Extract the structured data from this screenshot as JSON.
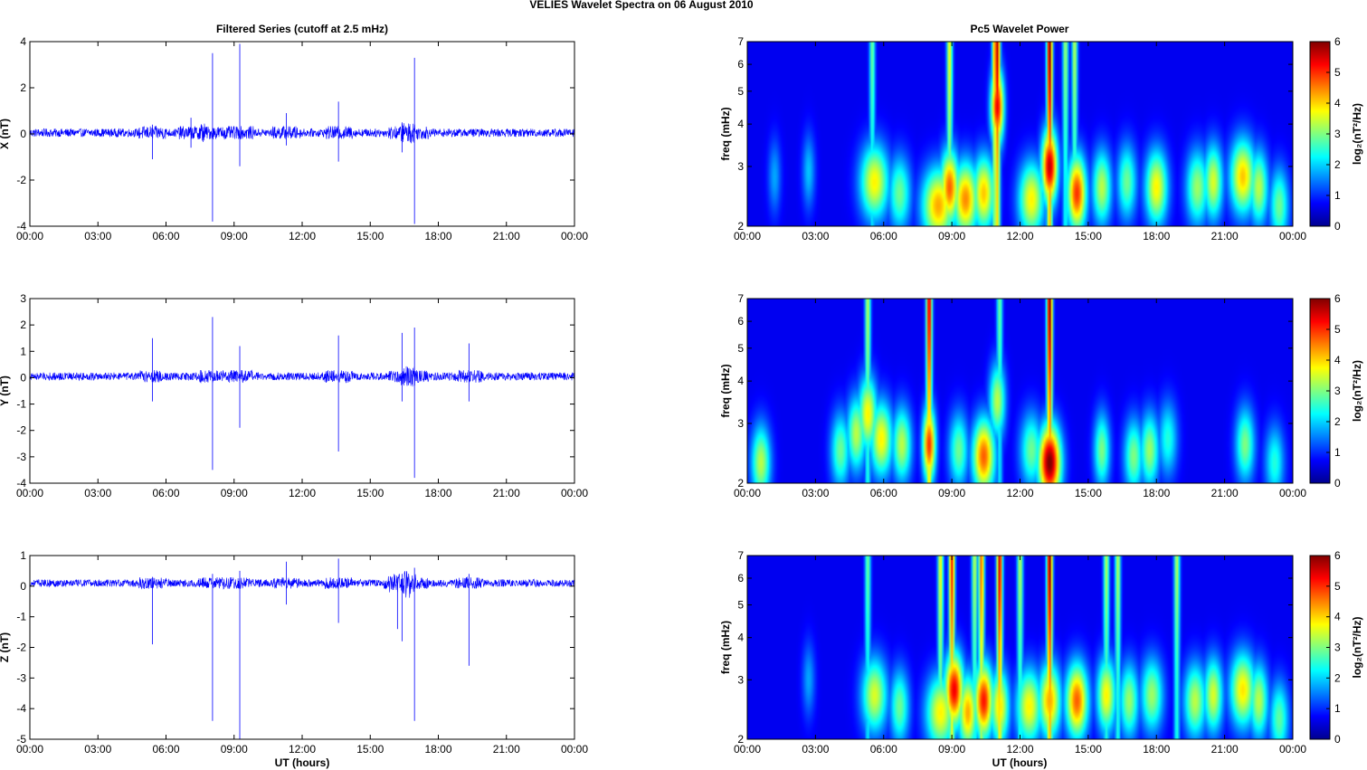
{
  "figure": {
    "suptitle": "VELIES Wavelet Spectra on 06 August    2010",
    "left_title": "Filtered Series (cutoff at 2.5 mHz)",
    "right_title": "Pc5 Wavelet Power",
    "xlabel": "UT (hours)",
    "freq_label": "freq (mHz)",
    "colorbar_label": "log₂(nT²/Hz)",
    "colorbar_ticks": [
      "0",
      "1",
      "2",
      "3",
      "4",
      "5",
      "6"
    ],
    "colormap": [
      "#00008f",
      "#0000ff",
      "#0080ff",
      "#00ffff",
      "#80ff80",
      "#ffff00",
      "#ff8000",
      "#ff0000",
      "#800000"
    ],
    "line_color": "#0000ff"
  },
  "chart_data": [
    {
      "type": "line",
      "component": "X",
      "ylabel": "X (nT)",
      "xlim": [
        0,
        24
      ],
      "ylim": [
        -4,
        4
      ],
      "x_ticks": [
        "00:00",
        "03:00",
        "06:00",
        "09:00",
        "12:00",
        "15:00",
        "18:00",
        "21:00",
        "00:00"
      ],
      "y_ticks": [
        "-4",
        "-2",
        "0",
        "2",
        "4"
      ],
      "baseline": 0.05,
      "noise_amplitude": 0.18,
      "spikes": [
        {
          "t": 5.4,
          "up": 0.4,
          "down": -1.1
        },
        {
          "t": 7.1,
          "up": 0.7,
          "down": -0.6
        },
        {
          "t": 8.05,
          "up": 3.5,
          "down": -3.8
        },
        {
          "t": 9.25,
          "up": 3.9,
          "down": -1.4
        },
        {
          "t": 11.3,
          "up": 0.9,
          "down": -0.5
        },
        {
          "t": 13.6,
          "up": 1.4,
          "down": -1.2
        },
        {
          "t": 16.4,
          "up": 0.5,
          "down": -0.8
        },
        {
          "t": 16.95,
          "up": 3.3,
          "down": -3.9
        }
      ]
    },
    {
      "type": "line",
      "component": "Y",
      "ylabel": "Y (nT)",
      "xlim": [
        0,
        24
      ],
      "ylim": [
        -4,
        3
      ],
      "x_ticks": [
        "00:00",
        "03:00",
        "06:00",
        "09:00",
        "12:00",
        "15:00",
        "18:00",
        "21:00",
        "00:00"
      ],
      "y_ticks": [
        "-4",
        "-3",
        "-2",
        "-1",
        "0",
        "1",
        "2",
        "3"
      ],
      "baseline": 0.05,
      "noise_amplitude": 0.15,
      "spikes": [
        {
          "t": 5.4,
          "up": 1.5,
          "down": -0.9
        },
        {
          "t": 8.05,
          "up": 2.3,
          "down": -3.5
        },
        {
          "t": 9.25,
          "up": 1.2,
          "down": -1.9
        },
        {
          "t": 13.6,
          "up": 1.6,
          "down": -2.8
        },
        {
          "t": 16.4,
          "up": 1.7,
          "down": -0.9
        },
        {
          "t": 16.95,
          "up": 1.9,
          "down": -3.8
        },
        {
          "t": 19.35,
          "up": 1.3,
          "down": -0.9
        }
      ]
    },
    {
      "type": "line",
      "component": "Z",
      "ylabel": "Z (nT)",
      "xlim": [
        0,
        24
      ],
      "ylim": [
        -5,
        1
      ],
      "x_ticks": [
        "00:00",
        "03:00",
        "06:00",
        "09:00",
        "12:00",
        "15:00",
        "18:00",
        "21:00",
        "00:00"
      ],
      "y_ticks": [
        "-5",
        "-4",
        "-3",
        "-2",
        "-1",
        "0",
        "1"
      ],
      "baseline": 0.1,
      "noise_amplitude": 0.12,
      "spikes": [
        {
          "t": 5.4,
          "up": 0.3,
          "down": -1.9
        },
        {
          "t": 8.05,
          "up": 0.4,
          "down": -4.4
        },
        {
          "t": 9.25,
          "up": 0.5,
          "down": -5.0
        },
        {
          "t": 11.3,
          "up": 0.8,
          "down": -0.6
        },
        {
          "t": 13.6,
          "up": 0.9,
          "down": -1.2
        },
        {
          "t": 16.2,
          "up": 0.3,
          "down": -1.4
        },
        {
          "t": 16.4,
          "up": 0.4,
          "down": -1.8
        },
        {
          "t": 16.95,
          "up": 0.6,
          "down": -4.4
        },
        {
          "t": 19.35,
          "up": 0.4,
          "down": -2.6
        }
      ]
    },
    {
      "type": "heatmap",
      "component": "X",
      "ylabel": "freq (mHz)",
      "xlim": [
        0,
        24
      ],
      "ylim": [
        2,
        7
      ],
      "yscale": "log",
      "clim": [
        0,
        6
      ],
      "x_ticks": [
        "00:00",
        "03:00",
        "06:00",
        "09:00",
        "12:00",
        "15:00",
        "18:00",
        "21:00",
        "00:00"
      ],
      "y_ticks": [
        "2",
        "3",
        "4",
        "5",
        "6",
        "7"
      ],
      "blobs": [
        {
          "t": 1.2,
          "f": 2.8,
          "p": 1.2,
          "w": 0.2
        },
        {
          "t": 2.7,
          "f": 2.9,
          "p": 1.4,
          "w": 0.2
        },
        {
          "t": 5.6,
          "f": 2.7,
          "p": 3.5,
          "w": 0.45
        },
        {
          "t": 6.7,
          "f": 2.5,
          "p": 2.5,
          "w": 0.35
        },
        {
          "t": 8.4,
          "f": 2.3,
          "p": 4.0,
          "w": 0.5
        },
        {
          "t": 8.9,
          "f": 2.6,
          "p": 4.5,
          "w": 0.3
        },
        {
          "t": 9.6,
          "f": 2.4,
          "p": 4.2,
          "w": 0.4
        },
        {
          "t": 10.4,
          "f": 2.5,
          "p": 3.8,
          "w": 0.35
        },
        {
          "t": 11.0,
          "f": 4.5,
          "p": 5.2,
          "w": 0.2
        },
        {
          "t": 12.5,
          "f": 2.4,
          "p": 3.5,
          "w": 0.4
        },
        {
          "t": 13.3,
          "f": 3.0,
          "p": 5.5,
          "w": 0.25
        },
        {
          "t": 14.5,
          "f": 2.5,
          "p": 4.8,
          "w": 0.3
        },
        {
          "t": 15.6,
          "f": 2.6,
          "p": 3.0,
          "w": 0.3
        },
        {
          "t": 16.7,
          "f": 2.7,
          "p": 2.5,
          "w": 0.3
        },
        {
          "t": 18.0,
          "f": 2.6,
          "p": 3.5,
          "w": 0.35
        },
        {
          "t": 19.8,
          "f": 2.6,
          "p": 2.8,
          "w": 0.35
        },
        {
          "t": 20.5,
          "f": 2.7,
          "p": 3.2,
          "w": 0.3
        },
        {
          "t": 21.8,
          "f": 2.8,
          "p": 3.8,
          "w": 0.4
        },
        {
          "t": 22.5,
          "f": 2.6,
          "p": 3.0,
          "w": 0.3
        },
        {
          "t": 23.4,
          "f": 2.3,
          "p": 2.5,
          "w": 0.3
        }
      ],
      "streaks": [
        {
          "t": 5.5,
          "p": 2.5
        },
        {
          "t": 8.9,
          "p": 3.5
        },
        {
          "t": 10.9,
          "p": 4.5
        },
        {
          "t": 11.0,
          "p": 5.5
        },
        {
          "t": 13.3,
          "p": 6.0
        },
        {
          "t": 14.0,
          "p": 2.8
        },
        {
          "t": 14.4,
          "p": 3.0
        }
      ]
    },
    {
      "type": "heatmap",
      "component": "Y",
      "ylabel": "freq (mHz)",
      "xlim": [
        0,
        24
      ],
      "ylim": [
        2,
        7
      ],
      "yscale": "log",
      "clim": [
        0,
        6
      ],
      "x_ticks": [
        "00:00",
        "03:00",
        "06:00",
        "09:00",
        "12:00",
        "15:00",
        "18:00",
        "21:00",
        "00:00"
      ],
      "y_ticks": [
        "2",
        "3",
        "4",
        "5",
        "6",
        "7"
      ],
      "blobs": [
        {
          "t": 0.6,
          "f": 2.3,
          "p": 3.0,
          "w": 0.3
        },
        {
          "t": 4.1,
          "f": 2.5,
          "p": 2.5,
          "w": 0.3
        },
        {
          "t": 4.8,
          "f": 2.8,
          "p": 3.0,
          "w": 0.3
        },
        {
          "t": 5.3,
          "f": 3.2,
          "p": 3.5,
          "w": 0.3
        },
        {
          "t": 5.9,
          "f": 2.7,
          "p": 3.5,
          "w": 0.35
        },
        {
          "t": 6.8,
          "f": 2.6,
          "p": 3.0,
          "w": 0.3
        },
        {
          "t": 8.0,
          "f": 2.6,
          "p": 4.8,
          "w": 0.2
        },
        {
          "t": 9.3,
          "f": 2.5,
          "p": 2.5,
          "w": 0.3
        },
        {
          "t": 10.4,
          "f": 2.4,
          "p": 4.5,
          "w": 0.35
        },
        {
          "t": 11.0,
          "f": 3.5,
          "p": 3.0,
          "w": 0.25
        },
        {
          "t": 12.5,
          "f": 2.5,
          "p": 2.5,
          "w": 0.35
        },
        {
          "t": 13.3,
          "f": 2.3,
          "p": 6.0,
          "w": 0.35
        },
        {
          "t": 15.6,
          "f": 2.5,
          "p": 2.6,
          "w": 0.25
        },
        {
          "t": 17.0,
          "f": 2.4,
          "p": 2.6,
          "w": 0.3
        },
        {
          "t": 17.7,
          "f": 2.5,
          "p": 2.8,
          "w": 0.3
        },
        {
          "t": 18.5,
          "f": 2.7,
          "p": 2.0,
          "w": 0.3
        },
        {
          "t": 21.9,
          "f": 2.6,
          "p": 2.6,
          "w": 0.3
        },
        {
          "t": 23.2,
          "f": 2.3,
          "p": 2.0,
          "w": 0.3
        }
      ],
      "streaks": [
        {
          "t": 5.3,
          "p": 3.0
        },
        {
          "t": 8.0,
          "p": 5.5
        },
        {
          "t": 11.1,
          "p": 2.5
        },
        {
          "t": 13.3,
          "p": 6.0
        }
      ]
    },
    {
      "type": "heatmap",
      "component": "Z",
      "ylabel": "freq (mHz)",
      "xlim": [
        0,
        24
      ],
      "ylim": [
        2,
        7
      ],
      "yscale": "log",
      "clim": [
        0,
        6
      ],
      "x_ticks": [
        "00:00",
        "03:00",
        "06:00",
        "09:00",
        "12:00",
        "15:00",
        "18:00",
        "21:00",
        "00:00"
      ],
      "y_ticks": [
        "2",
        "3",
        "4",
        "5",
        "6",
        "7"
      ],
      "blobs": [
        {
          "t": 2.7,
          "f": 3.0,
          "p": 1.2,
          "w": 0.2
        },
        {
          "t": 5.6,
          "f": 2.7,
          "p": 3.2,
          "w": 0.4
        },
        {
          "t": 6.7,
          "f": 2.5,
          "p": 2.5,
          "w": 0.3
        },
        {
          "t": 8.5,
          "f": 2.4,
          "p": 3.5,
          "w": 0.45
        },
        {
          "t": 9.1,
          "f": 2.8,
          "p": 5.2,
          "w": 0.3
        },
        {
          "t": 9.7,
          "f": 2.4,
          "p": 4.0,
          "w": 0.3
        },
        {
          "t": 10.4,
          "f": 2.6,
          "p": 5.0,
          "w": 0.3
        },
        {
          "t": 11.1,
          "f": 2.5,
          "p": 3.6,
          "w": 0.3
        },
        {
          "t": 12.4,
          "f": 2.5,
          "p": 3.5,
          "w": 0.4
        },
        {
          "t": 13.3,
          "f": 2.6,
          "p": 4.0,
          "w": 0.35
        },
        {
          "t": 14.5,
          "f": 2.6,
          "p": 4.5,
          "w": 0.35
        },
        {
          "t": 15.8,
          "f": 2.7,
          "p": 3.5,
          "w": 0.3
        },
        {
          "t": 16.8,
          "f": 2.6,
          "p": 2.8,
          "w": 0.3
        },
        {
          "t": 17.8,
          "f": 2.7,
          "p": 2.8,
          "w": 0.35
        },
        {
          "t": 19.7,
          "f": 2.6,
          "p": 3.0,
          "w": 0.35
        },
        {
          "t": 20.5,
          "f": 2.7,
          "p": 3.2,
          "w": 0.3
        },
        {
          "t": 21.8,
          "f": 2.8,
          "p": 3.6,
          "w": 0.4
        },
        {
          "t": 22.5,
          "f": 2.6,
          "p": 3.0,
          "w": 0.3
        },
        {
          "t": 23.4,
          "f": 2.3,
          "p": 2.4,
          "w": 0.3
        }
      ],
      "streaks": [
        {
          "t": 5.3,
          "p": 2.5
        },
        {
          "t": 8.5,
          "p": 3.5
        },
        {
          "t": 9.0,
          "p": 5.0
        },
        {
          "t": 10.0,
          "p": 3.0
        },
        {
          "t": 10.3,
          "p": 4.5
        },
        {
          "t": 11.1,
          "p": 5.5
        },
        {
          "t": 12.0,
          "p": 3.0
        },
        {
          "t": 13.3,
          "p": 6.0
        },
        {
          "t": 15.8,
          "p": 3.0
        },
        {
          "t": 16.3,
          "p": 3.0
        },
        {
          "t": 18.9,
          "p": 3.0
        }
      ]
    }
  ]
}
